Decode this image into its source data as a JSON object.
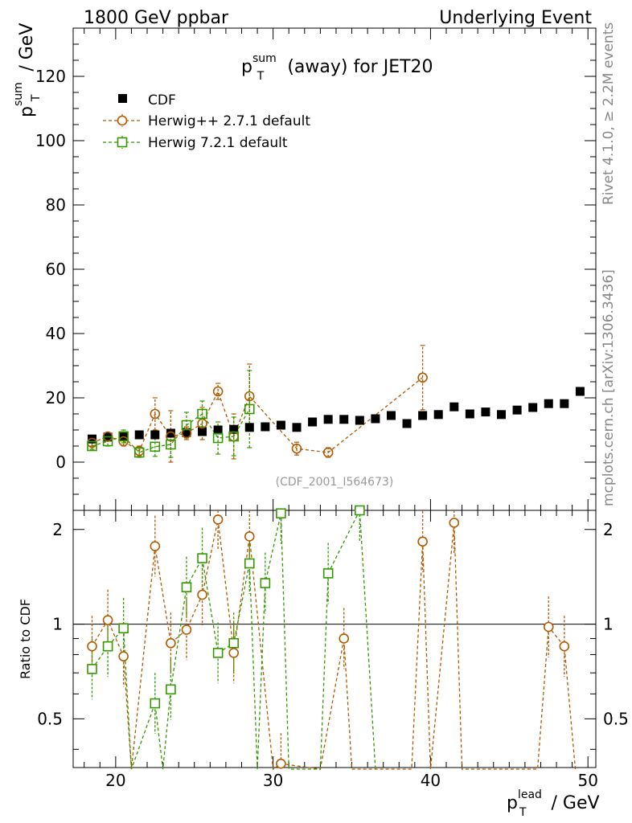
{
  "header": {
    "left": "1800 GeV ppbar",
    "right": "Underlying Event"
  },
  "side_labels": {
    "rivet": "Rivet 4.1.0, ≥ 2.2M events",
    "mcplots": "mcplots.cern.ch [arXiv:1306.3436]"
  },
  "chart_data": {
    "type": "scatter",
    "title": {
      "main": "p",
      "sup": "sum",
      "sub": "T",
      "rest": " (away) for JET20"
    },
    "watermark": "(CDF_2001_I564673)",
    "ylabel": {
      "main": "p",
      "sup": "sum",
      "sub": "T",
      "rest": " / GeV"
    },
    "xlabel": {
      "main": "p",
      "sup": "lead",
      "sub": "T",
      "rest": " / GeV"
    },
    "ratio_ylabel": "Ratio to CDF",
    "xlim": [
      17.3,
      50.5
    ],
    "ylim": [
      -15,
      135
    ],
    "ratio_ylim": [
      0.35,
      2.3
    ],
    "xticks": [
      20,
      30,
      40,
      50
    ],
    "yticks": [
      0,
      20,
      40,
      60,
      80,
      100,
      120
    ],
    "ratio_yticks": [
      0.5,
      1,
      2
    ],
    "ratio_tick_labels": [
      "0.5",
      "1",
      "2"
    ],
    "x": [
      18.5,
      19.5,
      20.5,
      21.5,
      22.5,
      23.5,
      24.5,
      25.5,
      26.5,
      27.5,
      28.5,
      29.5,
      30.5,
      31.5,
      32.5,
      33.5,
      34.5,
      35.5,
      36.5,
      37.5,
      38.5,
      39.5,
      40.5,
      41.5,
      42.5,
      43.5,
      44.5,
      45.5,
      46.5,
      47.5,
      48.5,
      49.5
    ],
    "series": [
      {
        "name": "CDF",
        "color": "#000000",
        "marker": "filled-square",
        "values": [
          7.2,
          7.8,
          8.2,
          8.5,
          8.5,
          9.0,
          9.2,
          9.5,
          10.0,
          10.2,
          10.8,
          11.0,
          11.5,
          10.8,
          12.5,
          13.3,
          13.3,
          13.0,
          13.5,
          14.5,
          12.0,
          14.5,
          14.8,
          17.2,
          15.0,
          15.6,
          14.8,
          16.2,
          17.0,
          18.2,
          18.2,
          22.0
        ]
      },
      {
        "name": "Herwig++ 2.7.1 default",
        "color": "#b35900",
        "marker": "open-circle",
        "x": [
          18.5,
          19.5,
          20.5,
          21.5,
          22.5,
          23.5,
          24.5,
          25.5,
          26.5,
          27.5,
          28.5,
          31.5,
          33.5,
          39.5
        ],
        "values": [
          6.0,
          8.0,
          6.5,
          3.5,
          15.0,
          8.0,
          9.0,
          12.0,
          22.0,
          8.0,
          20.5,
          4.2,
          3.0,
          26.3
        ],
        "errors": [
          1.0,
          1.0,
          1.5,
          1.5,
          5.0,
          8.0,
          2.0,
          5.0,
          2.5,
          7.0,
          10.0,
          2.0,
          1.5,
          10.0
        ],
        "ratio_x": [
          18.5,
          19.5,
          20.5,
          22.5,
          23.5,
          24.5,
          25.5,
          26.5,
          27.5,
          28.5,
          30.5,
          34.5,
          39.5,
          41.5,
          47.5,
          48.5
        ],
        "ratio": [
          0.85,
          1.03,
          0.79,
          1.77,
          0.87,
          0.96,
          1.24,
          2.15,
          0.81,
          1.9,
          0.36,
          0.9,
          1.83,
          2.1,
          0.98,
          0.85
        ],
        "ratio_dips": [
          21.0,
          30.0,
          33.0,
          35.0,
          38.8,
          40.0,
          42.0,
          46.8,
          49.2
        ]
      },
      {
        "name": "Herwig 7.2.1 default",
        "color": "#339900",
        "marker": "open-square",
        "x": [
          18.5,
          19.5,
          20.5,
          21.5,
          22.5,
          23.5,
          24.5,
          25.5,
          26.5,
          27.5,
          28.5
        ],
        "values": [
          5.0,
          6.5,
          8.0,
          3.0,
          4.8,
          5.5,
          11.5,
          15.0,
          7.5,
          8.0,
          16.5
        ],
        "errors": [
          1.0,
          1.5,
          2.0,
          1.5,
          3.0,
          4.0,
          4.0,
          4.0,
          5.0,
          6.0,
          12.0
        ],
        "ratio_x": [
          18.5,
          19.5,
          20.5,
          22.5,
          23.5,
          24.5,
          25.5,
          26.5,
          27.5,
          28.5,
          29.5,
          30.5,
          33.5,
          35.5
        ],
        "ratio": [
          0.72,
          0.85,
          0.97,
          0.56,
          0.62,
          1.31,
          1.62,
          0.81,
          0.87,
          1.56,
          1.35,
          2.25,
          1.45,
          2.3
        ],
        "ratio_dips": [
          21.0,
          23.0,
          29.0,
          31.0,
          33.0,
          36.5
        ]
      }
    ]
  }
}
